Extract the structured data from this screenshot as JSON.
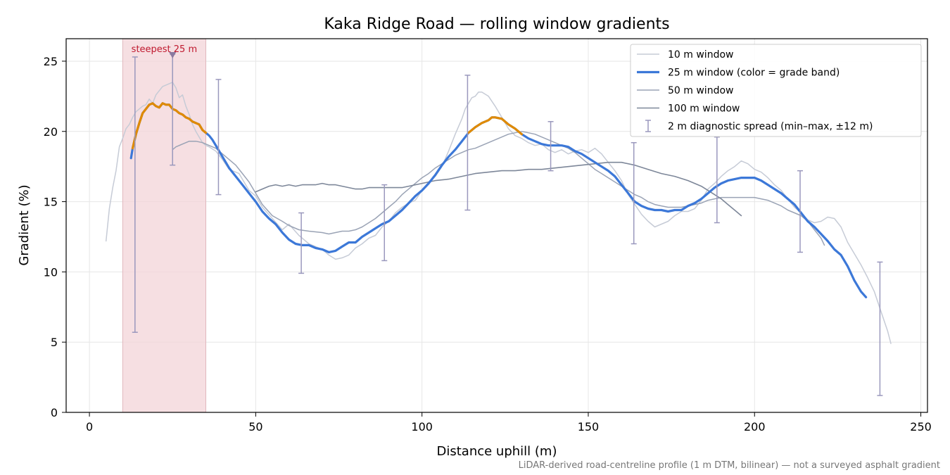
{
  "chart_data": {
    "type": "line",
    "title": "Kaka Ridge Road — rolling window gradients",
    "xlabel": "Distance uphill (m)",
    "ylabel": "Gradient (%)",
    "xlim": [
      -7,
      252
    ],
    "ylim": [
      0,
      26.6
    ],
    "xticks": [
      0,
      50,
      100,
      150,
      200,
      250
    ],
    "yticks": [
      0,
      5,
      10,
      15,
      20,
      25
    ],
    "grid": true,
    "legend_position": "top-right",
    "footnote": "LiDAR-derived road-centreline profile (1 m DTM, bilinear) — not a surveyed asphalt gradient",
    "highlight": {
      "x_range": [
        10,
        35
      ],
      "label": "steepest 25 m",
      "marker": {
        "x": 25,
        "y": 25.5
      }
    },
    "colors": {
      "w10": "#c6cbd6",
      "w25": "#3c78d8",
      "w25_steep": "#e08a00",
      "w50": "#9aa3b5",
      "w100": "#7d8799",
      "errorbar": "#9a98bd",
      "highlight": "#f3d4d8",
      "highlight_edge": "#e0b7bd",
      "annotation": "#c0182e"
    },
    "series": [
      {
        "name": "10 m window",
        "key": "w10",
        "x": [
          5,
          6,
          7,
          8,
          9,
          10,
          11,
          12,
          13,
          14,
          15,
          16,
          17,
          18,
          19,
          20,
          21,
          22,
          23,
          24,
          25,
          26,
          27,
          28,
          29,
          30,
          31,
          32,
          33,
          34,
          35,
          36,
          38,
          40,
          42,
          45,
          48,
          50,
          52,
          55,
          58,
          60,
          63,
          66,
          70,
          72,
          74,
          76,
          78,
          80,
          82,
          84,
          86,
          88,
          90,
          92,
          94,
          96,
          98,
          100,
          102,
          104,
          106,
          108,
          110,
          112,
          113,
          114,
          115,
          116,
          117,
          118,
          120,
          122,
          124,
          126,
          128,
          130,
          132,
          134,
          136,
          138,
          140,
          142,
          144,
          146,
          148,
          150,
          152,
          154,
          156,
          158,
          160,
          162,
          164,
          166,
          168,
          170,
          172,
          174,
          176,
          178,
          180,
          182,
          184,
          186,
          188,
          190,
          192,
          194,
          196,
          198,
          200,
          202,
          204,
          206,
          208,
          210,
          212,
          214,
          216,
          218,
          220,
          222,
          224,
          226,
          228,
          230,
          232,
          234,
          236,
          238,
          240,
          241
        ],
        "y": [
          12.2,
          14.5,
          16.0,
          17.2,
          18.9,
          19.5,
          20.2,
          20.5,
          21.0,
          21.4,
          21.6,
          21.8,
          21.9,
          22.3,
          22.0,
          22.6,
          22.9,
          23.2,
          23.3,
          23.4,
          23.5,
          23.1,
          22.4,
          22.6,
          21.8,
          21.2,
          20.5,
          20.0,
          19.6,
          19.2,
          19.0,
          18.9,
          18.6,
          18.0,
          17.3,
          17.0,
          15.8,
          15.4,
          14.6,
          13.8,
          13.0,
          13.4,
          12.6,
          12.0,
          11.6,
          11.2,
          10.9,
          11.0,
          11.2,
          11.7,
          12.0,
          12.4,
          12.6,
          13.2,
          13.6,
          14.2,
          14.6,
          14.9,
          15.1,
          15.8,
          16.4,
          16.8,
          17.5,
          18.6,
          19.8,
          20.9,
          21.6,
          22.0,
          22.4,
          22.5,
          22.8,
          22.8,
          22.5,
          21.8,
          21.0,
          20.2,
          19.7,
          19.5,
          19.2,
          19.0,
          19.1,
          18.7,
          18.5,
          18.7,
          18.4,
          18.6,
          18.7,
          18.5,
          18.8,
          18.4,
          17.8,
          17.2,
          16.5,
          15.5,
          14.8,
          14.1,
          13.6,
          13.2,
          13.4,
          13.6,
          14.0,
          14.3,
          14.3,
          14.5,
          15.1,
          15.9,
          16.3,
          16.8,
          17.2,
          17.5,
          17.9,
          17.7,
          17.3,
          17.1,
          16.7,
          16.2,
          15.8,
          15.2,
          14.6,
          14.2,
          13.7,
          13.5,
          13.6,
          13.9,
          13.8,
          13.2,
          12.1,
          11.3,
          10.5,
          9.6,
          8.6,
          7.2,
          5.8,
          4.9
        ]
      },
      {
        "name": "25 m window (color = grade band)",
        "key": "w25",
        "x": [
          12.5,
          13,
          14,
          15,
          16,
          17,
          18,
          19,
          20,
          21,
          22,
          23,
          24,
          25,
          26,
          27,
          28,
          29,
          30,
          31,
          32,
          33,
          34,
          35,
          36,
          37,
          38,
          40,
          42,
          44,
          46,
          48,
          50,
          52,
          54,
          56,
          58,
          60,
          62,
          64,
          66,
          68,
          70,
          72,
          74,
          76,
          78,
          80,
          82,
          84,
          86,
          88,
          90,
          92,
          94,
          96,
          98,
          100,
          102,
          104,
          106,
          108,
          110,
          112,
          114,
          116,
          118,
          120,
          121,
          122,
          124,
          126,
          128,
          130,
          132,
          134,
          136,
          138,
          140,
          142,
          144,
          146,
          148,
          150,
          152,
          154,
          156,
          158,
          160,
          162,
          164,
          166,
          168,
          170,
          172,
          174,
          176,
          178,
          180,
          182,
          184,
          186,
          188,
          190,
          192,
          194,
          196,
          198,
          200,
          202,
          204,
          206,
          208,
          210,
          212,
          214,
          216,
          218,
          220,
          222,
          224,
          226,
          228,
          230,
          232,
          233.5
        ],
        "y": [
          18.1,
          18.8,
          19.8,
          20.6,
          21.3,
          21.6,
          21.9,
          22.0,
          21.8,
          21.7,
          22.0,
          21.9,
          21.9,
          21.6,
          21.5,
          21.3,
          21.2,
          21.0,
          20.9,
          20.7,
          20.6,
          20.5,
          20.1,
          19.9,
          19.7,
          19.4,
          19.0,
          18.2,
          17.4,
          16.8,
          16.2,
          15.6,
          15.0,
          14.3,
          13.8,
          13.4,
          12.8,
          12.3,
          12.0,
          11.9,
          11.9,
          11.7,
          11.6,
          11.4,
          11.5,
          11.8,
          12.1,
          12.1,
          12.5,
          12.8,
          13.1,
          13.4,
          13.6,
          14.0,
          14.4,
          14.9,
          15.4,
          15.8,
          16.3,
          16.9,
          17.6,
          18.2,
          18.7,
          19.3,
          19.9,
          20.3,
          20.6,
          20.8,
          21.0,
          21.0,
          20.9,
          20.5,
          20.2,
          19.8,
          19.5,
          19.3,
          19.1,
          19.0,
          19.0,
          19.0,
          18.9,
          18.6,
          18.4,
          18.1,
          17.8,
          17.5,
          17.2,
          16.8,
          16.2,
          15.6,
          15.0,
          14.7,
          14.5,
          14.4,
          14.4,
          14.3,
          14.4,
          14.4,
          14.7,
          14.9,
          15.2,
          15.6,
          16.0,
          16.3,
          16.5,
          16.6,
          16.7,
          16.7,
          16.7,
          16.5,
          16.2,
          15.9,
          15.6,
          15.2,
          14.8,
          14.2,
          13.6,
          13.2,
          12.7,
          12.2,
          11.6,
          11.2,
          10.4,
          9.4,
          8.6,
          8.2
        ]
      },
      {
        "name": "50 m window",
        "key": "w50",
        "x": [
          25,
          26,
          28,
          30,
          32,
          34,
          36,
          38,
          40,
          42,
          44,
          46,
          48,
          50,
          52,
          55,
          58,
          60,
          63,
          66,
          70,
          72,
          74,
          76,
          78,
          80,
          82,
          84,
          86,
          88,
          90,
          92,
          94,
          96,
          98,
          100,
          102,
          104,
          106,
          108,
          110,
          112,
          114,
          116,
          118,
          120,
          122,
          124,
          126,
          128,
          130,
          132,
          134,
          136,
          138,
          140,
          142,
          144,
          146,
          148,
          150,
          152,
          154,
          156,
          158,
          160,
          162,
          164,
          166,
          168,
          170,
          172,
          174,
          176,
          178,
          180,
          182,
          184,
          186,
          188,
          190,
          192,
          194,
          196,
          198,
          200,
          202,
          204,
          206,
          208,
          210,
          212,
          214,
          216,
          218,
          220,
          221
        ],
        "y": [
          18.7,
          18.9,
          19.1,
          19.3,
          19.3,
          19.2,
          19.0,
          18.8,
          18.4,
          18.0,
          17.6,
          17.0,
          16.4,
          15.6,
          14.8,
          14.0,
          13.6,
          13.3,
          13.0,
          12.9,
          12.8,
          12.7,
          12.8,
          12.9,
          12.9,
          13.0,
          13.2,
          13.5,
          13.8,
          14.2,
          14.6,
          15.0,
          15.5,
          15.9,
          16.3,
          16.7,
          17.0,
          17.4,
          17.7,
          18.0,
          18.3,
          18.5,
          18.7,
          18.8,
          19.0,
          19.2,
          19.4,
          19.6,
          19.8,
          19.9,
          20.0,
          19.9,
          19.8,
          19.6,
          19.4,
          19.2,
          19.0,
          18.8,
          18.5,
          18.1,
          17.7,
          17.3,
          17.0,
          16.7,
          16.4,
          16.1,
          15.8,
          15.5,
          15.3,
          15.0,
          14.8,
          14.7,
          14.6,
          14.6,
          14.6,
          14.7,
          14.8,
          14.9,
          15.1,
          15.2,
          15.3,
          15.3,
          15.3,
          15.3,
          15.3,
          15.3,
          15.2,
          15.1,
          14.9,
          14.7,
          14.4,
          14.2,
          14.0,
          13.6,
          13.0,
          12.4,
          11.9
        ]
      },
      {
        "name": "100 m window",
        "key": "w100",
        "x": [
          50,
          52,
          54,
          56,
          58,
          60,
          62,
          64,
          66,
          68,
          70,
          72,
          74,
          76,
          78,
          80,
          82,
          84,
          86,
          88,
          90,
          92,
          94,
          96,
          98,
          100,
          104,
          108,
          112,
          116,
          120,
          124,
          128,
          132,
          136,
          140,
          144,
          148,
          152,
          156,
          160,
          164,
          168,
          172,
          176,
          180,
          184,
          188,
          190,
          192,
          194,
          196
        ],
        "y": [
          15.7,
          15.9,
          16.1,
          16.2,
          16.1,
          16.2,
          16.1,
          16.2,
          16.2,
          16.2,
          16.3,
          16.2,
          16.2,
          16.1,
          16.0,
          15.9,
          15.9,
          16.0,
          16.0,
          16.0,
          16.0,
          16.0,
          16.0,
          16.1,
          16.2,
          16.3,
          16.5,
          16.6,
          16.8,
          17.0,
          17.1,
          17.2,
          17.2,
          17.3,
          17.3,
          17.4,
          17.5,
          17.6,
          17.7,
          17.8,
          17.8,
          17.6,
          17.3,
          17.0,
          16.8,
          16.5,
          16.1,
          15.5,
          15.2,
          14.8,
          14.4,
          14.0
        ]
      }
    ],
    "steep_segments": [
      {
        "x_from": 13,
        "x_to": 35
      },
      {
        "x_from": 113,
        "x_to": 131
      }
    ],
    "diagnostic_spread": {
      "name": "2 m diagnostic spread (min–max, ±12 m)",
      "x": [
        13.7,
        25,
        38.8,
        63.7,
        88.7,
        113.7,
        138.7,
        163.7,
        188.7,
        213.7,
        237.7
      ],
      "min": [
        5.7,
        17.6,
        15.5,
        9.9,
        10.8,
        14.4,
        17.2,
        12.0,
        13.5,
        11.4,
        1.2
      ],
      "max": [
        25.3,
        25.5,
        23.7,
        14.2,
        16.2,
        24.0,
        20.7,
        19.2,
        19.6,
        17.2,
        10.7
      ]
    }
  }
}
